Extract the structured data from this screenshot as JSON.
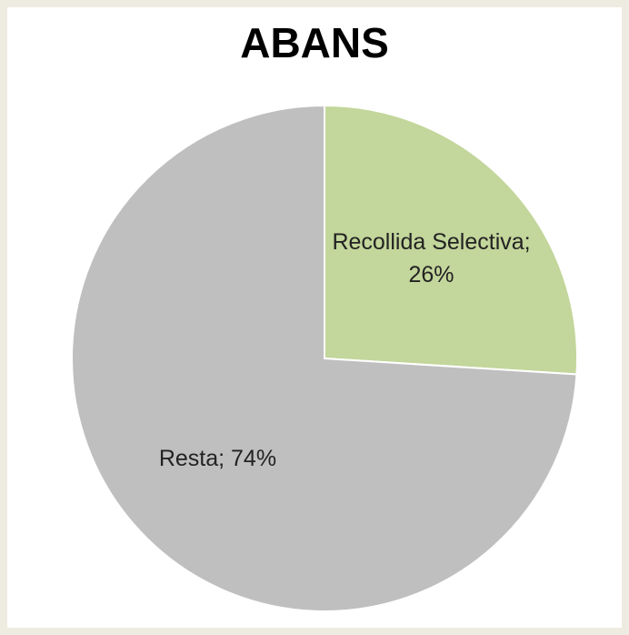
{
  "chart_data": {
    "type": "pie",
    "title": "ABANS",
    "categories": [
      "Recollida Selectiva",
      "Resta"
    ],
    "values": [
      26,
      74
    ],
    "value_labels": [
      "26%",
      "74%"
    ],
    "colors": [
      "#c3d69b",
      "#bfbfbf"
    ]
  }
}
